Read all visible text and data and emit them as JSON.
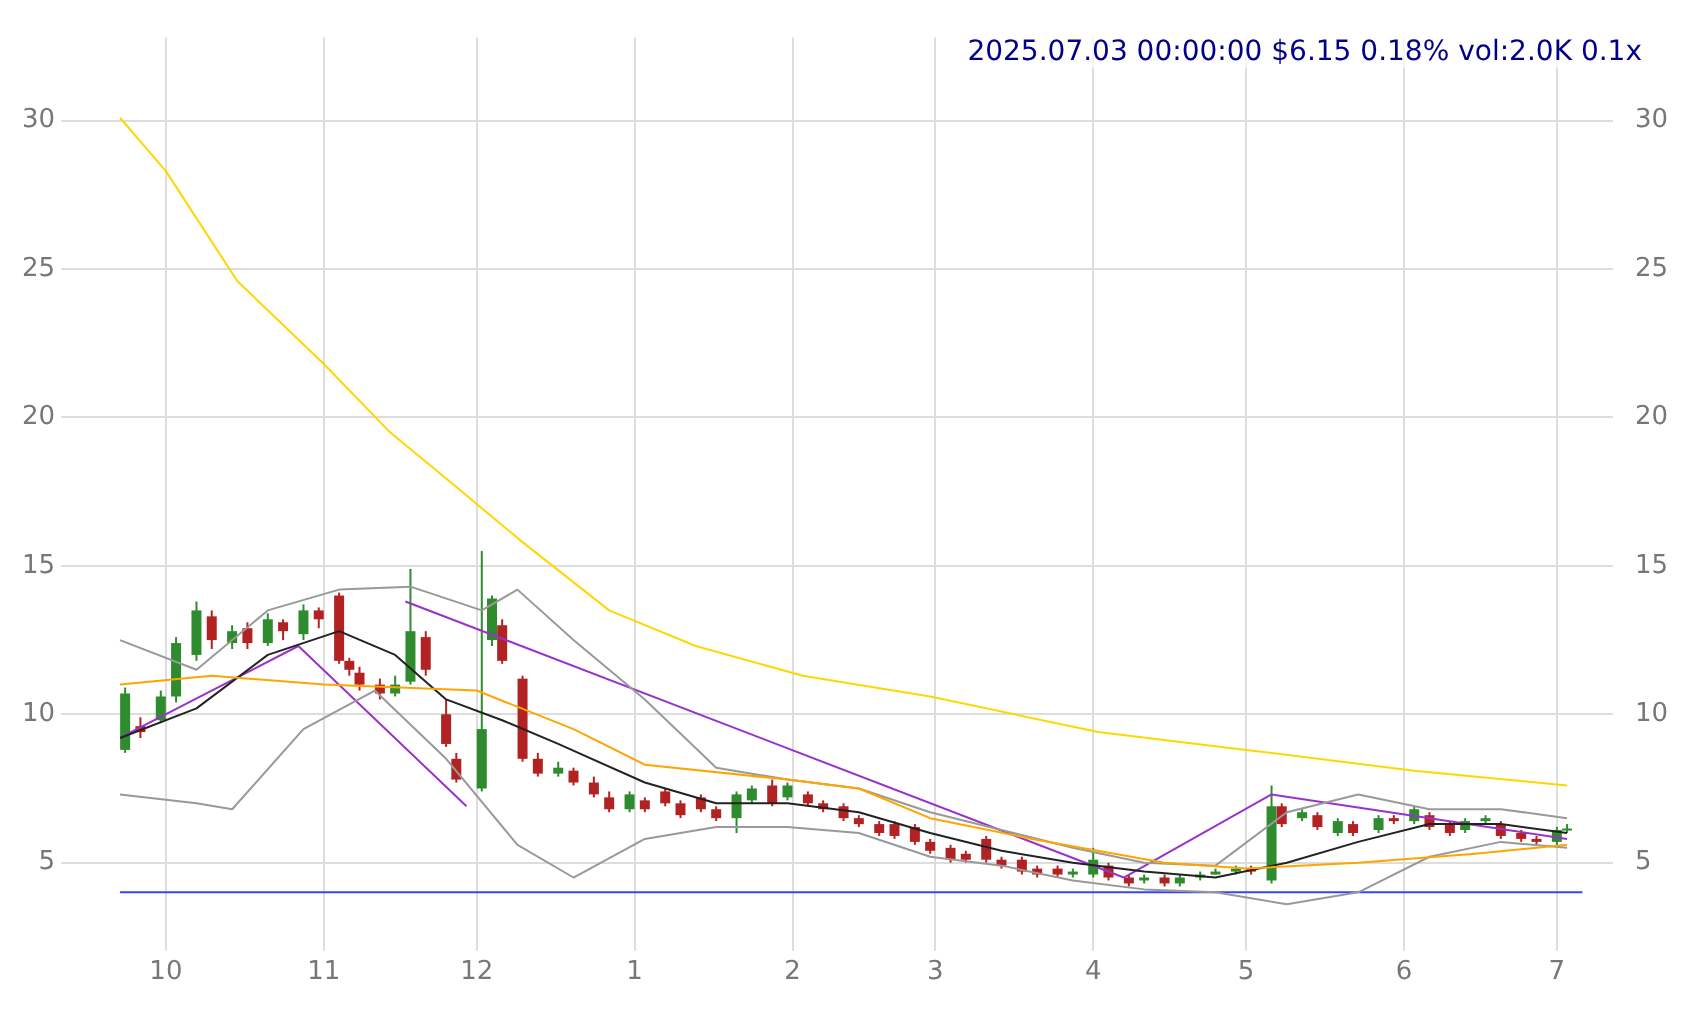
{
  "chart_data": {
    "type": "candlestick",
    "title": "2025.07.03 00:00:00 $6.15 0.18% vol:2.0K 0.1x",
    "x": [
      "2024-09-23",
      "2024-09-26",
      "2024-09-30",
      "2024-10-03",
      "2024-10-07",
      "2024-10-10",
      "2024-10-14",
      "2024-10-17",
      "2024-10-21",
      "2024-10-24",
      "2024-10-28",
      "2024-10-31",
      "2024-11-04",
      "2024-11-06",
      "2024-11-08",
      "2024-11-12",
      "2024-11-15",
      "2024-11-18",
      "2024-11-21",
      "2024-11-25",
      "2024-11-27",
      "2024-12-02",
      "2024-12-04",
      "2024-12-06",
      "2024-12-10",
      "2024-12-13",
      "2024-12-17",
      "2024-12-20",
      "2024-12-24",
      "2024-12-27",
      "2024-12-31",
      "2025-01-03",
      "2025-01-07",
      "2025-01-10",
      "2025-01-14",
      "2025-01-17",
      "2025-01-21",
      "2025-01-24",
      "2025-01-28",
      "2025-01-31",
      "2025-02-04",
      "2025-02-07",
      "2025-02-11",
      "2025-02-14",
      "2025-02-18",
      "2025-02-21",
      "2025-02-25",
      "2025-02-28",
      "2025-03-04",
      "2025-03-07",
      "2025-03-11",
      "2025-03-14",
      "2025-03-18",
      "2025-03-21",
      "2025-03-25",
      "2025-03-28",
      "2025-04-01",
      "2025-04-04",
      "2025-04-08",
      "2025-04-11",
      "2025-04-15",
      "2025-04-18",
      "2025-04-22",
      "2025-04-25",
      "2025-04-29",
      "2025-05-02",
      "2025-05-06",
      "2025-05-08",
      "2025-05-12",
      "2025-05-15",
      "2025-05-19",
      "2025-05-22",
      "2025-05-27",
      "2025-05-30",
      "2025-06-03",
      "2025-06-06",
      "2025-06-10",
      "2025-06-13",
      "2025-06-17",
      "2025-06-20",
      "2025-06-24",
      "2025-06-27",
      "2025-07-01",
      "2025-07-03"
    ],
    "ohlc": [
      [
        8.8,
        10.9,
        8.7,
        10.7
      ],
      [
        9.6,
        9.9,
        9.2,
        9.4
      ],
      [
        9.8,
        10.8,
        9.7,
        10.6
      ],
      [
        10.6,
        12.6,
        10.4,
        12.4
      ],
      [
        12.0,
        13.8,
        11.8,
        13.5
      ],
      [
        13.3,
        13.5,
        12.2,
        12.5
      ],
      [
        12.4,
        13.0,
        12.2,
        12.8
      ],
      [
        12.9,
        13.1,
        12.2,
        12.4
      ],
      [
        12.4,
        13.4,
        12.3,
        13.2
      ],
      [
        13.1,
        13.2,
        12.5,
        12.8
      ],
      [
        12.7,
        13.7,
        12.5,
        13.5
      ],
      [
        13.5,
        13.6,
        12.9,
        13.2
      ],
      [
        14.0,
        14.1,
        11.7,
        11.8
      ],
      [
        11.8,
        11.9,
        11.3,
        11.5
      ],
      [
        11.4,
        11.6,
        10.8,
        11.0
      ],
      [
        11.0,
        11.2,
        10.5,
        10.7
      ],
      [
        10.7,
        11.3,
        10.6,
        11.0
      ],
      [
        11.1,
        14.9,
        11.0,
        12.8
      ],
      [
        12.6,
        12.8,
        11.3,
        11.5
      ],
      [
        10.0,
        10.5,
        8.9,
        9.0
      ],
      [
        8.5,
        8.7,
        7.7,
        7.8
      ],
      [
        7.5,
        15.5,
        7.4,
        9.5
      ],
      [
        12.5,
        14.0,
        12.3,
        13.9
      ],
      [
        13.0,
        13.2,
        11.7,
        11.8
      ],
      [
        11.2,
        11.3,
        8.4,
        8.5
      ],
      [
        8.5,
        8.7,
        7.9,
        8.0
      ],
      [
        8.0,
        8.4,
        7.9,
        8.2
      ],
      [
        8.1,
        8.2,
        7.6,
        7.7
      ],
      [
        7.7,
        7.9,
        7.2,
        7.3
      ],
      [
        7.2,
        7.4,
        6.7,
        6.8
      ],
      [
        6.8,
        7.4,
        6.7,
        7.3
      ],
      [
        7.1,
        7.2,
        6.7,
        6.8
      ],
      [
        7.4,
        7.5,
        6.9,
        7.0
      ],
      [
        7.0,
        7.1,
        6.5,
        6.6
      ],
      [
        7.2,
        7.3,
        6.7,
        6.8
      ],
      [
        6.8,
        6.9,
        6.4,
        6.5
      ],
      [
        6.5,
        7.4,
        6.0,
        7.3
      ],
      [
        7.1,
        7.6,
        7.0,
        7.5
      ],
      [
        7.6,
        7.8,
        6.9,
        7.0
      ],
      [
        7.2,
        7.7,
        7.1,
        7.6
      ],
      [
        7.3,
        7.4,
        6.9,
        7.0
      ],
      [
        7.0,
        7.1,
        6.7,
        6.8
      ],
      [
        6.9,
        7.0,
        6.4,
        6.5
      ],
      [
        6.5,
        6.6,
        6.2,
        6.3
      ],
      [
        6.3,
        6.4,
        5.9,
        6.0
      ],
      [
        6.3,
        6.4,
        5.8,
        5.9
      ],
      [
        6.2,
        6.3,
        5.6,
        5.7
      ],
      [
        5.7,
        5.8,
        5.3,
        5.4
      ],
      [
        5.5,
        5.6,
        5.0,
        5.1
      ],
      [
        5.3,
        5.4,
        5.0,
        5.1
      ],
      [
        5.8,
        5.9,
        5.0,
        5.1
      ],
      [
        5.1,
        5.2,
        4.8,
        4.9
      ],
      [
        5.1,
        5.2,
        4.6,
        4.7
      ],
      [
        4.8,
        4.9,
        4.5,
        4.6
      ],
      [
        4.8,
        4.9,
        4.5,
        4.6
      ],
      [
        4.6,
        4.8,
        4.5,
        4.7
      ],
      [
        4.6,
        5.5,
        4.5,
        5.1
      ],
      [
        4.9,
        5.0,
        4.4,
        4.5
      ],
      [
        4.5,
        4.6,
        4.2,
        4.3
      ],
      [
        4.4,
        4.6,
        4.3,
        4.5
      ],
      [
        4.5,
        4.6,
        4.2,
        4.3
      ],
      [
        4.3,
        4.6,
        4.2,
        4.5
      ],
      [
        4.5,
        4.7,
        4.4,
        4.6
      ],
      [
        4.6,
        4.8,
        4.6,
        4.7
      ],
      [
        4.7,
        4.9,
        4.6,
        4.8
      ],
      [
        4.8,
        4.9,
        4.6,
        4.7
      ],
      [
        4.4,
        7.6,
        4.3,
        6.9
      ],
      [
        6.9,
        7.0,
        6.2,
        6.3
      ],
      [
        6.5,
        6.8,
        6.4,
        6.7
      ],
      [
        6.6,
        6.7,
        6.1,
        6.2
      ],
      [
        6.0,
        6.5,
        5.9,
        6.4
      ],
      [
        6.3,
        6.4,
        5.9,
        6.0
      ],
      [
        6.1,
        6.6,
        6.0,
        6.5
      ],
      [
        6.5,
        6.6,
        6.3,
        6.4
      ],
      [
        6.4,
        6.9,
        6.3,
        6.8
      ],
      [
        6.6,
        6.7,
        6.1,
        6.2
      ],
      [
        6.3,
        6.4,
        5.9,
        6.0
      ],
      [
        6.1,
        6.5,
        6.0,
        6.4
      ],
      [
        6.4,
        6.6,
        6.3,
        6.5
      ],
      [
        6.3,
        6.4,
        5.8,
        5.9
      ],
      [
        6.0,
        6.1,
        5.7,
        5.8
      ],
      [
        5.8,
        5.9,
        5.6,
        5.7
      ],
      [
        5.7,
        6.2,
        5.6,
        6.1
      ],
      [
        6.1,
        6.3,
        6.0,
        6.15
      ]
    ],
    "colors": [
      "#2e8b2e",
      "#b22222",
      "#2e8b2e",
      "#2e8b2e",
      "#2e8b2e",
      "#b22222",
      "#2e8b2e",
      "#b22222",
      "#2e8b2e",
      "#b22222",
      "#2e8b2e",
      "#b22222",
      "#b22222",
      "#b22222",
      "#b22222",
      "#b22222",
      "#2e8b2e",
      "#2e8b2e",
      "#b22222",
      "#b22222",
      "#b22222",
      "#2e8b2e",
      "#2e8b2e",
      "#b22222",
      "#b22222",
      "#b22222",
      "#2e8b2e",
      "#b22222",
      "#b22222",
      "#b22222",
      "#2e8b2e",
      "#b22222",
      "#b22222",
      "#b22222",
      "#b22222",
      "#b22222",
      "#2e8b2e",
      "#2e8b2e",
      "#b22222",
      "#2e8b2e",
      "#b22222",
      "#b22222",
      "#b22222",
      "#b22222",
      "#b22222",
      "#b22222",
      "#b22222",
      "#b22222",
      "#b22222",
      "#b22222",
      "#b22222",
      "#b22222",
      "#b22222",
      "#b22222",
      "#b22222",
      "#2e8b2e",
      "#2e8b2e",
      "#b22222",
      "#b22222",
      "#2e8b2e",
      "#b22222",
      "#2e8b2e",
      "#2e8b2e",
      "#2e8b2e",
      "#2e8b2e",
      "#b22222",
      "#2e8b2e",
      "#b22222",
      "#2e8b2e",
      "#b22222",
      "#2e8b2e",
      "#b22222",
      "#2e8b2e",
      "#b22222",
      "#2e8b2e",
      "#b22222",
      "#b22222",
      "#2e8b2e",
      "#2e8b2e",
      "#b22222",
      "#b22222",
      "#b22222",
      "#2e8b2e",
      "#2e8b2e"
    ],
    "series": [
      {
        "type": "line",
        "color": "#ffd700",
        "x": [
          "2024-09-22",
          "2024-10-01",
          "2024-10-15",
          "2024-11-01",
          "2024-11-14",
          "2024-11-26",
          "2024-12-10",
          "2024-12-27",
          "2025-01-13",
          "2025-02-03",
          "2025-02-28",
          "2025-04-02",
          "2025-05-01",
          "2025-06-03",
          "2025-07-03"
        ],
        "values": [
          30.1,
          28.3,
          24.6,
          21.8,
          19.5,
          17.8,
          15.8,
          13.5,
          12.3,
          11.3,
          10.6,
          9.4,
          8.8,
          8.1,
          7.6
        ]
      },
      {
        "type": "line",
        "color": "#ffa500",
        "x": [
          "2024-09-22",
          "2024-10-10",
          "2024-11-01",
          "2024-12-01",
          "2024-12-20",
          "2025-01-03",
          "2025-01-31",
          "2025-02-14",
          "2025-02-28",
          "2025-03-20",
          "2025-04-15",
          "2025-05-01",
          "2025-05-23",
          "2025-06-15",
          "2025-07-03"
        ],
        "values": [
          11.0,
          11.3,
          11.0,
          10.8,
          9.5,
          8.3,
          7.8,
          7.5,
          6.5,
          5.8,
          5.0,
          4.8,
          5.0,
          5.3,
          5.6
        ]
      },
      {
        "type": "line",
        "color": "#222222",
        "x": [
          "2024-09-22",
          "2024-10-07",
          "2024-10-21",
          "2024-11-04",
          "2024-11-15",
          "2024-11-25",
          "2024-12-06",
          "2024-12-17",
          "2025-01-03",
          "2025-01-17",
          "2025-01-31",
          "2025-02-14",
          "2025-02-28",
          "2025-03-14",
          "2025-03-28",
          "2025-04-11",
          "2025-04-25",
          "2025-05-09",
          "2025-05-23",
          "2025-06-06",
          "2025-06-20",
          "2025-07-03"
        ],
        "values": [
          9.2,
          10.2,
          12.0,
          12.8,
          12.0,
          10.5,
          9.8,
          9.0,
          7.7,
          7.0,
          7.0,
          6.7,
          6.0,
          5.4,
          5.0,
          4.7,
          4.5,
          5.0,
          5.7,
          6.3,
          6.3,
          6.0
        ]
      },
      {
        "type": "line",
        "color": "#999999",
        "x": [
          "2024-09-22",
          "2024-10-07",
          "2024-10-21",
          "2024-11-04",
          "2024-11-18",
          "2024-12-02",
          "2024-12-09",
          "2024-12-20",
          "2025-01-03",
          "2025-01-17",
          "2025-01-31",
          "2025-02-14",
          "2025-02-28",
          "2025-03-14",
          "2025-03-28",
          "2025-04-11",
          "2025-04-25",
          "2025-05-09",
          "2025-05-23",
          "2025-06-06",
          "2025-06-20",
          "2025-07-03"
        ],
        "values": [
          12.5,
          11.5,
          13.5,
          14.2,
          14.3,
          13.5,
          14.2,
          12.5,
          10.5,
          8.2,
          7.8,
          7.5,
          6.7,
          6.1,
          5.5,
          5.0,
          4.9,
          6.7,
          7.3,
          6.8,
          6.8,
          6.5
        ]
      },
      {
        "type": "line",
        "color": "#999999",
        "x": [
          "2024-09-22",
          "2024-10-07",
          "2024-10-14",
          "2024-10-28",
          "2024-11-11",
          "2024-11-25",
          "2024-12-09",
          "2024-12-20",
          "2025-01-03",
          "2025-01-17",
          "2025-01-31",
          "2025-02-14",
          "2025-02-28",
          "2025-03-14",
          "2025-03-28",
          "2025-04-11",
          "2025-04-25",
          "2025-05-09",
          "2025-05-23",
          "2025-06-06",
          "2025-06-20",
          "2025-07-03"
        ],
        "values": [
          7.3,
          7.0,
          6.8,
          9.5,
          10.8,
          8.5,
          5.6,
          4.5,
          5.8,
          6.2,
          6.2,
          6.0,
          5.2,
          4.9,
          4.4,
          4.1,
          4.0,
          3.6,
          4.0,
          5.2,
          5.7,
          5.5
        ]
      },
      {
        "type": "line",
        "color": "#9932cc",
        "x": [
          "2024-09-23",
          "2024-10-27",
          "2024-11-29"
        ],
        "values": [
          9.3,
          12.3,
          6.9
        ]
      },
      {
        "type": "line",
        "color": "#9932cc",
        "x": [
          "2024-11-17",
          "2025-04-07",
          "2025-05-06",
          "2025-07-03"
        ],
        "values": [
          13.8,
          4.5,
          7.3,
          5.8
        ]
      },
      {
        "type": "line",
        "color": "#3344ff",
        "x": [
          "2024-09-22",
          "2025-07-06"
        ],
        "values": [
          4,
          4
        ]
      }
    ],
    "xlim": [
      "2024-09-12",
      "2025-07-12"
    ],
    "xticks": [
      {
        "value": "2024-10-01",
        "label": "10"
      },
      {
        "value": "2024-11-01",
        "label": "11"
      },
      {
        "value": "2024-12-01",
        "label": "12"
      },
      {
        "value": "2025-01-01",
        "label": "1"
      },
      {
        "value": "2025-02-01",
        "label": "2"
      },
      {
        "value": "2025-03-01",
        "label": "3"
      },
      {
        "value": "2025-04-01",
        "label": "4"
      },
      {
        "value": "2025-05-01",
        "label": "5"
      },
      {
        "value": "2025-06-01",
        "label": "6"
      },
      {
        "value": "2025-07-01",
        "label": "7"
      }
    ],
    "ylim": [
      2.3,
      32.8
    ],
    "yticks": [
      5,
      10,
      15,
      20,
      25,
      30
    ],
    "y2lim": [
      2.3,
      32.8
    ],
    "y2ticks": [
      5,
      10,
      15,
      20,
      25,
      30
    ],
    "grid": true
  }
}
